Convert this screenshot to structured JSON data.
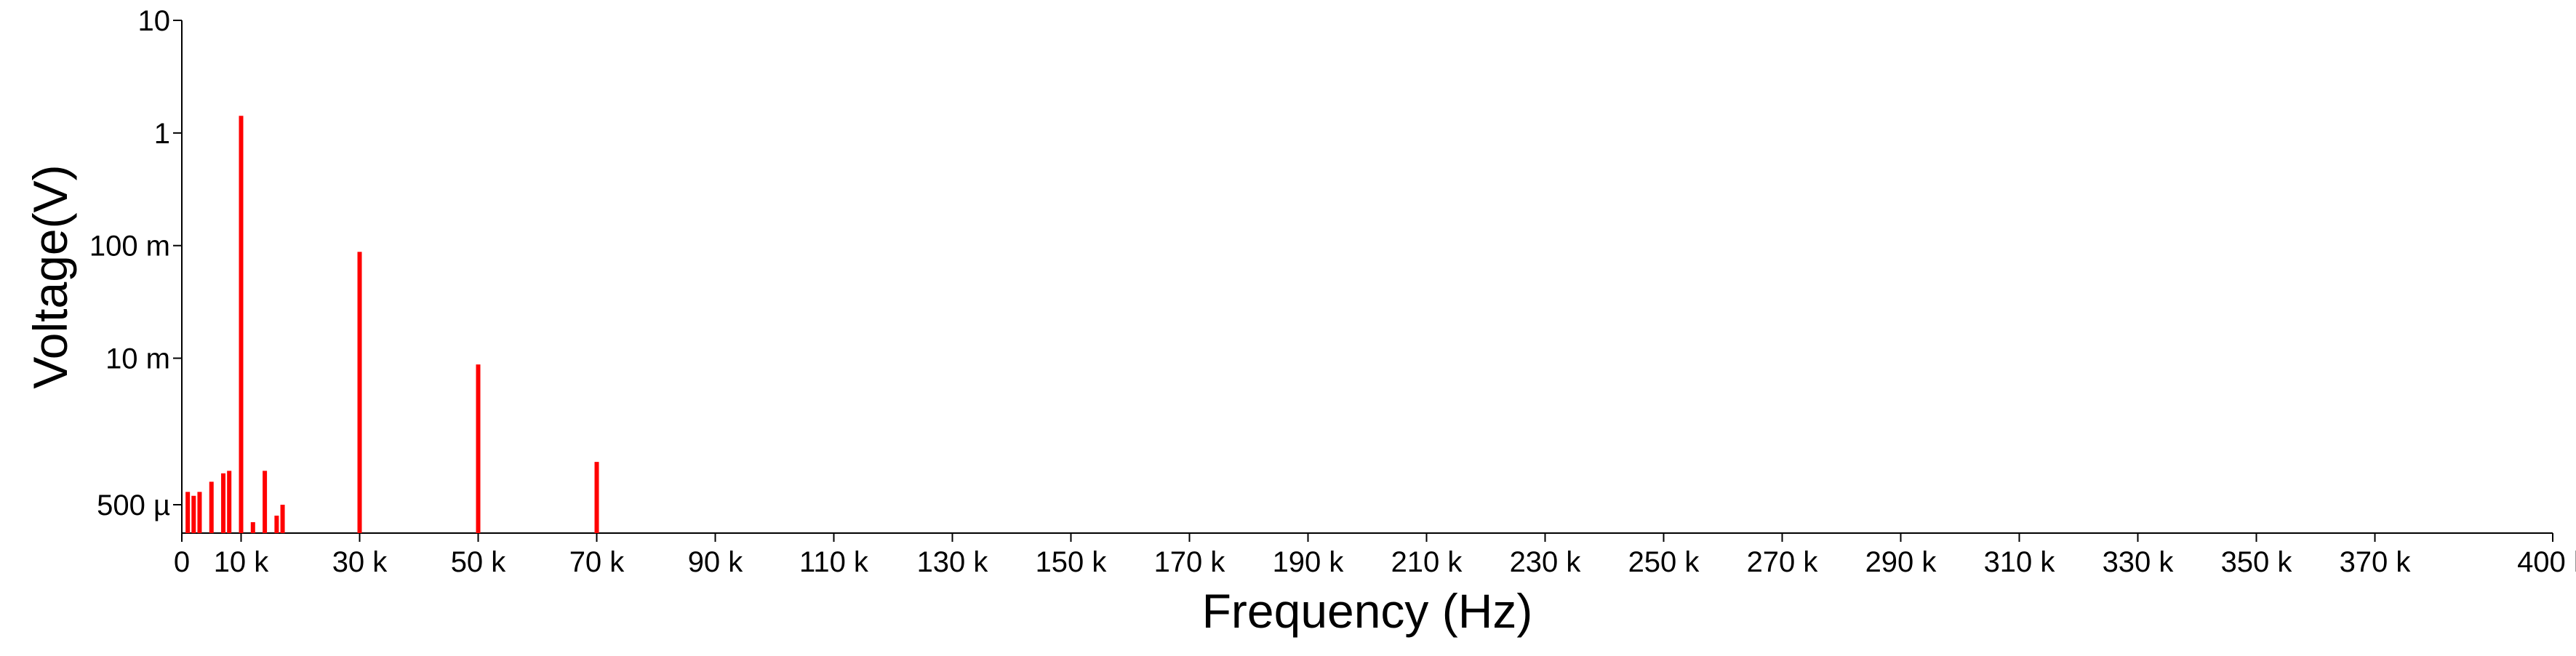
{
  "chart_data": {
    "type": "bar",
    "xlabel": "Frequency (Hz)",
    "ylabel": "Voltage(V)",
    "x_scale": "linear",
    "y_scale": "log",
    "xlim": [
      0,
      400000
    ],
    "ylim": [
      0.00028,
      10
    ],
    "grid": false,
    "legend": "none",
    "bar_color": "#ff0000",
    "x_ticks": [
      {
        "value": 0,
        "label": "0"
      },
      {
        "value": 10000,
        "label": "10 k"
      },
      {
        "value": 30000,
        "label": "30 k"
      },
      {
        "value": 50000,
        "label": "50 k"
      },
      {
        "value": 70000,
        "label": "70 k"
      },
      {
        "value": 90000,
        "label": "90 k"
      },
      {
        "value": 110000,
        "label": "110 k"
      },
      {
        "value": 130000,
        "label": "130 k"
      },
      {
        "value": 150000,
        "label": "150 k"
      },
      {
        "value": 170000,
        "label": "170 k"
      },
      {
        "value": 190000,
        "label": "190 k"
      },
      {
        "value": 210000,
        "label": "210 k"
      },
      {
        "value": 230000,
        "label": "230 k"
      },
      {
        "value": 250000,
        "label": "250 k"
      },
      {
        "value": 270000,
        "label": "270 k"
      },
      {
        "value": 290000,
        "label": "290 k"
      },
      {
        "value": 310000,
        "label": "310 k"
      },
      {
        "value": 330000,
        "label": "330 k"
      },
      {
        "value": 350000,
        "label": "350 k"
      },
      {
        "value": 370000,
        "label": "370 k"
      },
      {
        "value": 400000,
        "label": "400 k"
      }
    ],
    "y_ticks": [
      {
        "value": 10,
        "label": "10"
      },
      {
        "value": 1,
        "label": "1"
      },
      {
        "value": 0.1,
        "label": "100 m"
      },
      {
        "value": 0.01,
        "label": "10 m"
      },
      {
        "value": 0.0005,
        "label": "500 µ"
      }
    ],
    "x": [
      1000,
      2000,
      3000,
      5000,
      7000,
      8000,
      10000,
      12000,
      14000,
      16000,
      17000,
      30000,
      50000,
      70000
    ],
    "values": [
      0.00065,
      0.0006,
      0.00065,
      0.0008,
      0.00095,
      0.001,
      1.42,
      0.00035,
      0.001,
      0.0004,
      0.0005,
      0.088,
      0.0088,
      0.0012
    ]
  }
}
